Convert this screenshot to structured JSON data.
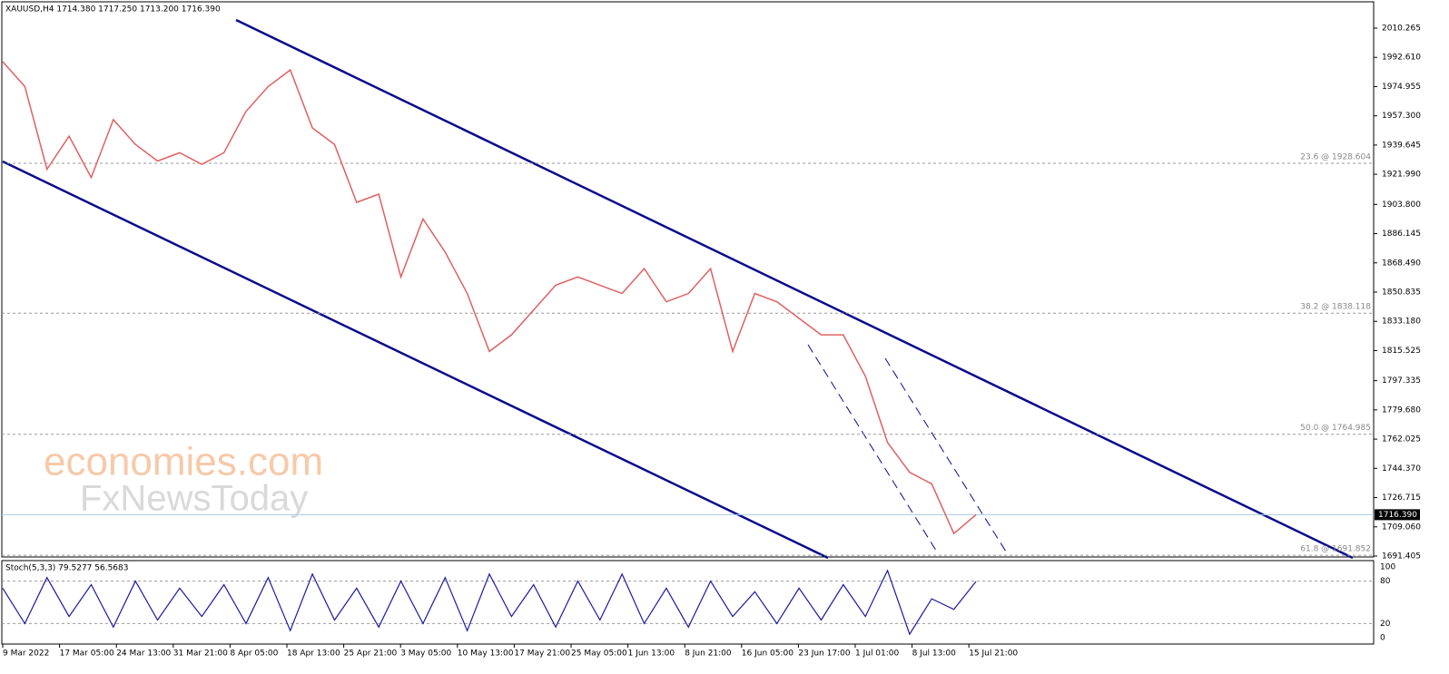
{
  "header": "XAUUSD,H4  1714.380 1717.250 1713.200 1716.390",
  "watermark": [
    "economies.com",
    "FxNewsToday"
  ],
  "price_axis": {
    "ylim": [
      1691.405,
      2010.265
    ],
    "ticks": [
      {
        "value": 2010.265,
        "label": "2010.265"
      },
      {
        "value": 1992.61,
        "label": "1992.610"
      },
      {
        "value": 1974.955,
        "label": "1974.955"
      },
      {
        "value": 1957.3,
        "label": "1957.300"
      },
      {
        "value": 1939.645,
        "label": "1939.645"
      },
      {
        "value": 1921.99,
        "label": "1921.990"
      },
      {
        "value": 1903.8,
        "label": "1903.800"
      },
      {
        "value": 1886.145,
        "label": "1886.145"
      },
      {
        "value": 1868.49,
        "label": "1868.490"
      },
      {
        "value": 1850.835,
        "label": "1850.835"
      },
      {
        "value": 1833.18,
        "label": "1833.180"
      },
      {
        "value": 1815.525,
        "label": "1815.525"
      },
      {
        "value": 1797.335,
        "label": "1797.335"
      },
      {
        "value": 1779.68,
        "label": "1779.680"
      },
      {
        "value": 1762.025,
        "label": "1762.025"
      },
      {
        "value": 1744.37,
        "label": "1744.370"
      },
      {
        "value": 1726.715,
        "label": "1726.715"
      },
      {
        "value": 1709.06,
        "label": "1709.060"
      },
      {
        "value": 1691.405,
        "label": "1691.405"
      }
    ]
  },
  "current_price": {
    "value": 1716.39,
    "label": "1716.390"
  },
  "fib_levels": [
    {
      "value": 1928.604,
      "label": "23.6 @ 1928.604"
    },
    {
      "value": 1838.118,
      "label": "38.2 @ 1838.118"
    },
    {
      "value": 1764.985,
      "label": "50.0 @ 1764.985"
    },
    {
      "value": 1691.852,
      "label": "61.8 @ 1691.852"
    }
  ],
  "price": {
    "close": [
      1990,
      1975,
      1925,
      1945,
      1920,
      1955,
      1940,
      1930,
      1935,
      1928,
      1935,
      1960,
      1975,
      1985,
      1950,
      1940,
      1905,
      1910,
      1860,
      1895,
      1875,
      1850,
      1815,
      1825,
      1840,
      1855,
      1860,
      1855,
      1850,
      1865,
      1845,
      1850,
      1865,
      1815,
      1850,
      1845,
      1835,
      1825,
      1825,
      1800,
      1760,
      1742,
      1735,
      1705,
      1716.39
    ]
  },
  "stoch": {
    "label": "Stoch(5,3,3) 79.5277 56.5683",
    "levels": [
      {
        "value": 100,
        "label": "100"
      },
      {
        "value": 80,
        "label": "80"
      },
      {
        "value": 20,
        "label": "20"
      },
      {
        "value": 0,
        "label": "0"
      }
    ],
    "values": [
      70,
      20,
      85,
      30,
      75,
      15,
      80,
      25,
      70,
      30,
      75,
      20,
      85,
      10,
      90,
      25,
      70,
      15,
      80,
      20,
      85,
      10,
      90,
      30,
      75,
      15,
      80,
      25,
      90,
      20,
      70,
      15,
      80,
      30,
      65,
      20,
      70,
      25,
      75,
      30,
      95,
      5,
      55,
      40,
      79.5277
    ]
  },
  "time_axis": [
    "9 Mar 2022",
    "17 Mar 05:00",
    "24 Mar 13:00",
    "31 Mar 21:00",
    "8 Apr 05:00",
    "18 Apr 13:00",
    "25 Apr 21:00",
    "3 May 05:00",
    "10 May 13:00",
    "17 May 21:00",
    "25 May 05:00",
    "1 Jun 13:00",
    "8 Jun 21:00",
    "16 Jun 05:00",
    "23 Jun 17:00",
    "1 Jul 01:00",
    "8 Jul 13:00",
    "15 Jul 21:00"
  ]
}
